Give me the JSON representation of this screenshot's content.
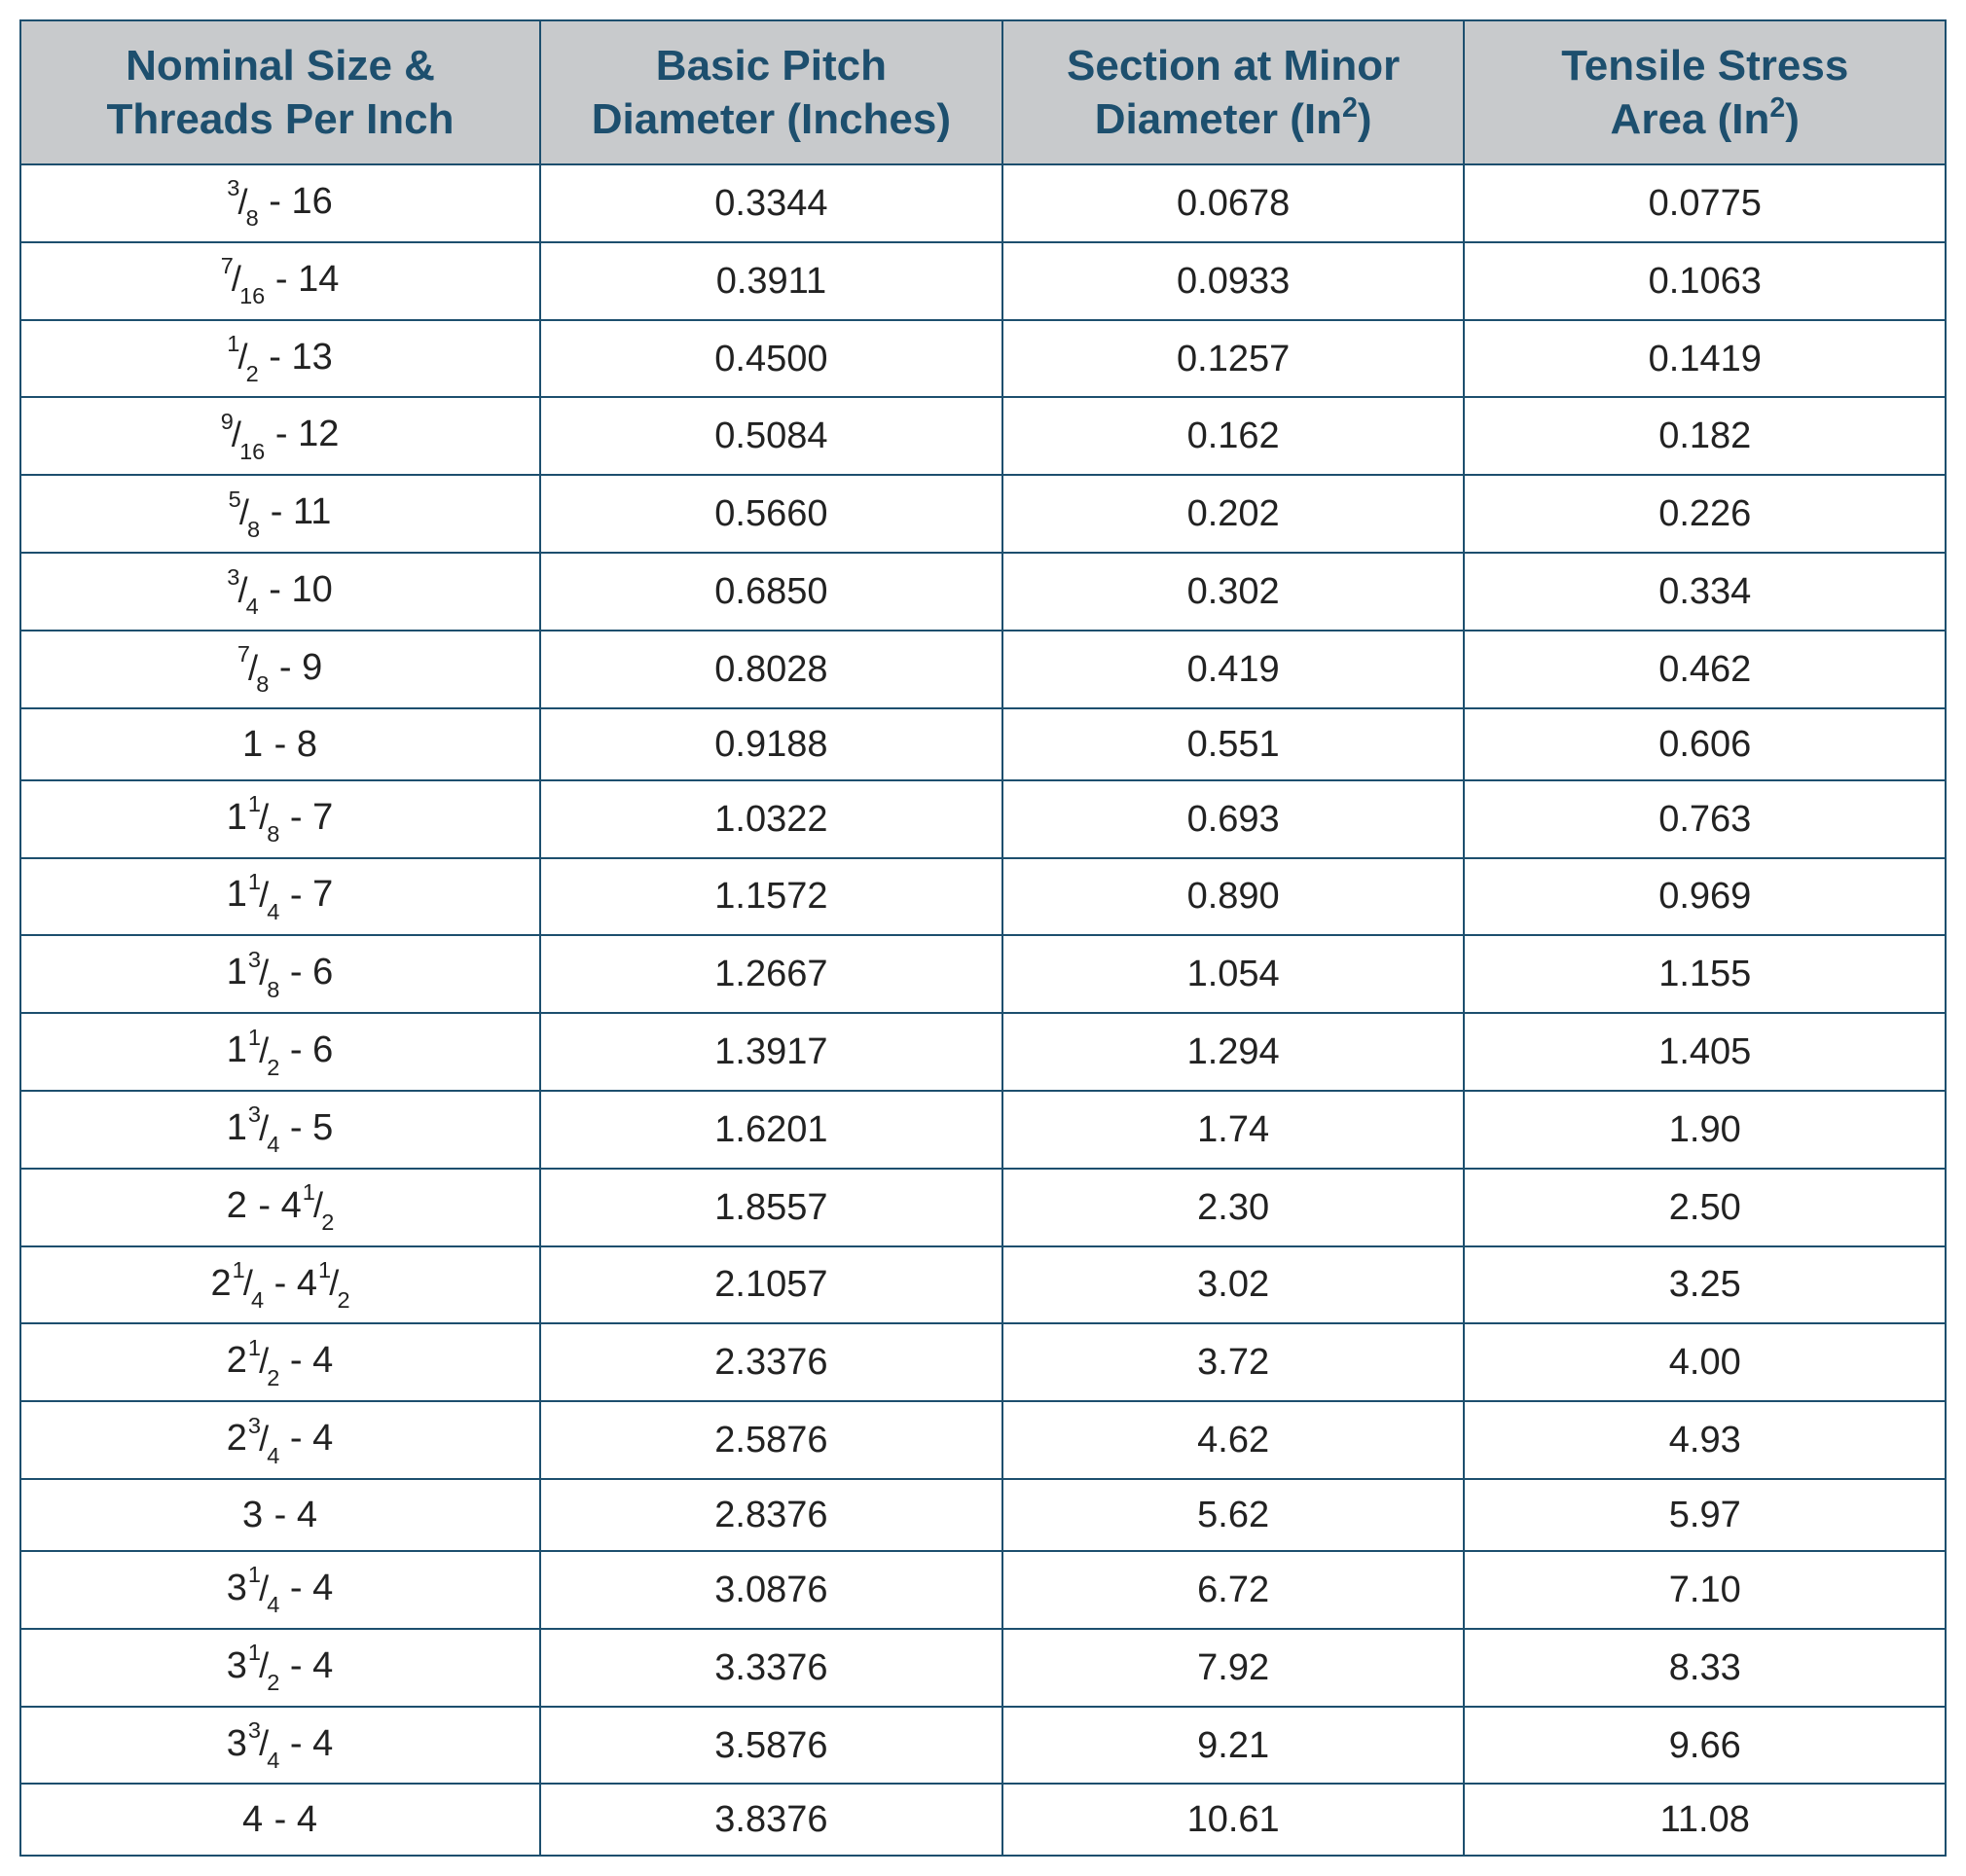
{
  "table": {
    "border_color": "#1d4f6e",
    "header_bg": "#c8cacc",
    "header_text_color": "#1d4f6e",
    "cell_text_color": "#222222",
    "cell_bg": "#ffffff",
    "header_fontsize_pt": 33,
    "cell_fontsize_pt": 29,
    "column_widths_pct": [
      27,
      24,
      24,
      25
    ],
    "columns": [
      {
        "line1": "Nominal Size &",
        "line2": "Threads Per Inch",
        "has_sup2": false
      },
      {
        "line1": "Basic Pitch",
        "line2_prefix": "Diameter (Inches)",
        "has_sup2": false
      },
      {
        "line1": "Section at Minor",
        "line2_prefix": "Diameter (In",
        "line2_suffix": ")",
        "has_sup2": true
      },
      {
        "line1": "Tensile Stress",
        "line2_prefix": "Area (In",
        "line2_suffix": ")",
        "has_sup2": true
      }
    ],
    "rows": [
      {
        "size": {
          "whole": "",
          "num": "3",
          "den": "8",
          "tpi_whole": "16",
          "tpi_num": "",
          "tpi_den": ""
        },
        "pitch": "0.3344",
        "minor": "0.0678",
        "tensile": "0.0775"
      },
      {
        "size": {
          "whole": "",
          "num": "7",
          "den": "16",
          "tpi_whole": "14",
          "tpi_num": "",
          "tpi_den": ""
        },
        "pitch": "0.3911",
        "minor": "0.0933",
        "tensile": "0.1063"
      },
      {
        "size": {
          "whole": "",
          "num": "1",
          "den": "2",
          "tpi_whole": "13",
          "tpi_num": "",
          "tpi_den": ""
        },
        "pitch": "0.4500",
        "minor": "0.1257",
        "tensile": "0.1419"
      },
      {
        "size": {
          "whole": "",
          "num": "9",
          "den": "16",
          "tpi_whole": "12",
          "tpi_num": "",
          "tpi_den": ""
        },
        "pitch": "0.5084",
        "minor": "0.162",
        "tensile": "0.182"
      },
      {
        "size": {
          "whole": "",
          "num": "5",
          "den": "8",
          "tpi_whole": "11",
          "tpi_num": "",
          "tpi_den": ""
        },
        "pitch": "0.5660",
        "minor": "0.202",
        "tensile": "0.226"
      },
      {
        "size": {
          "whole": "",
          "num": "3",
          "den": "4",
          "tpi_whole": "10",
          "tpi_num": "",
          "tpi_den": ""
        },
        "pitch": "0.6850",
        "minor": "0.302",
        "tensile": "0.334"
      },
      {
        "size": {
          "whole": "",
          "num": "7",
          "den": "8",
          "tpi_whole": "9",
          "tpi_num": "",
          "tpi_den": ""
        },
        "pitch": "0.8028",
        "minor": "0.419",
        "tensile": "0.462"
      },
      {
        "size": {
          "whole": "1",
          "num": "",
          "den": "",
          "tpi_whole": "8",
          "tpi_num": "",
          "tpi_den": ""
        },
        "pitch": "0.9188",
        "minor": "0.551",
        "tensile": "0.606"
      },
      {
        "size": {
          "whole": "1",
          "num": "1",
          "den": "8",
          "tpi_whole": "7",
          "tpi_num": "",
          "tpi_den": ""
        },
        "pitch": "1.0322",
        "minor": "0.693",
        "tensile": "0.763"
      },
      {
        "size": {
          "whole": "1",
          "num": "1",
          "den": "4",
          "tpi_whole": "7",
          "tpi_num": "",
          "tpi_den": ""
        },
        "pitch": "1.1572",
        "minor": "0.890",
        "tensile": "0.969"
      },
      {
        "size": {
          "whole": "1",
          "num": "3",
          "den": "8",
          "tpi_whole": "6",
          "tpi_num": "",
          "tpi_den": ""
        },
        "pitch": "1.2667",
        "minor": "1.054",
        "tensile": "1.155"
      },
      {
        "size": {
          "whole": "1",
          "num": "1",
          "den": "2",
          "tpi_whole": "6",
          "tpi_num": "",
          "tpi_den": ""
        },
        "pitch": "1.3917",
        "minor": "1.294",
        "tensile": "1.405"
      },
      {
        "size": {
          "whole": "1",
          "num": "3",
          "den": "4",
          "tpi_whole": "5",
          "tpi_num": "",
          "tpi_den": ""
        },
        "pitch": "1.6201",
        "minor": "1.74",
        "tensile": "1.90"
      },
      {
        "size": {
          "whole": "2",
          "num": "",
          "den": "",
          "tpi_whole": "4",
          "tpi_num": "1",
          "tpi_den": "2"
        },
        "pitch": "1.8557",
        "minor": "2.30",
        "tensile": "2.50"
      },
      {
        "size": {
          "whole": "2",
          "num": "1",
          "den": "4",
          "tpi_whole": "4",
          "tpi_num": "1",
          "tpi_den": "2"
        },
        "pitch": "2.1057",
        "minor": "3.02",
        "tensile": "3.25"
      },
      {
        "size": {
          "whole": "2",
          "num": "1",
          "den": "2",
          "tpi_whole": "4",
          "tpi_num": "",
          "tpi_den": ""
        },
        "pitch": "2.3376",
        "minor": "3.72",
        "tensile": "4.00"
      },
      {
        "size": {
          "whole": "2",
          "num": "3",
          "den": "4",
          "tpi_whole": "4",
          "tpi_num": "",
          "tpi_den": ""
        },
        "pitch": "2.5876",
        "minor": "4.62",
        "tensile": "4.93"
      },
      {
        "size": {
          "whole": "3",
          "num": "",
          "den": "",
          "tpi_whole": "4",
          "tpi_num": "",
          "tpi_den": ""
        },
        "pitch": "2.8376",
        "minor": "5.62",
        "tensile": "5.97"
      },
      {
        "size": {
          "whole": "3",
          "num": "1",
          "den": "4",
          "tpi_whole": "4",
          "tpi_num": "",
          "tpi_den": ""
        },
        "pitch": "3.0876",
        "minor": "6.72",
        "tensile": "7.10"
      },
      {
        "size": {
          "whole": "3",
          "num": "1",
          "den": "2",
          "tpi_whole": "4",
          "tpi_num": "",
          "tpi_den": ""
        },
        "pitch": "3.3376",
        "minor": "7.92",
        "tensile": "8.33"
      },
      {
        "size": {
          "whole": "3",
          "num": "3",
          "den": "4",
          "tpi_whole": "4",
          "tpi_num": "",
          "tpi_den": ""
        },
        "pitch": "3.5876",
        "minor": "9.21",
        "tensile": "9.66"
      },
      {
        "size": {
          "whole": "4",
          "num": "",
          "den": "",
          "tpi_whole": "4",
          "tpi_num": "",
          "tpi_den": ""
        },
        "pitch": "3.8376",
        "minor": "10.61",
        "tensile": "11.08"
      }
    ]
  }
}
